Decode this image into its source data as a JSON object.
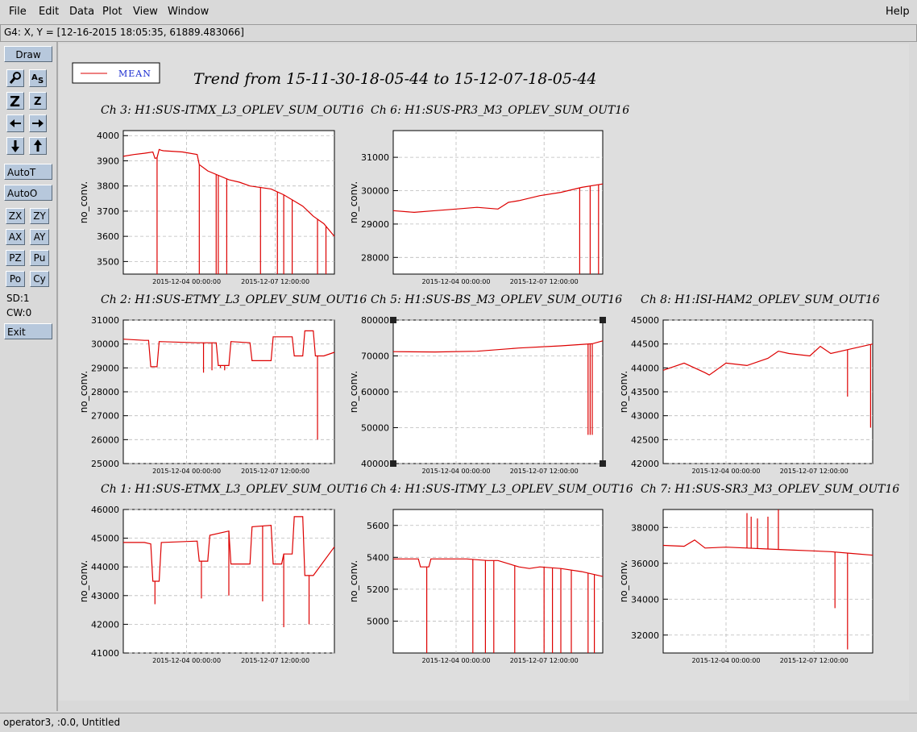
{
  "menu": {
    "file": "File",
    "edit": "Edit",
    "data": "Data",
    "plot": "Plot",
    "view": "View",
    "window": "Window",
    "help": "Help"
  },
  "coord_readout": "G4: X, Y = [12-16-2015 18:05:35, 61889.483066]",
  "toolbar": {
    "draw": "Draw",
    "autot": "AutoT",
    "autoo": "AutoO",
    "zx": "ZX",
    "zy": "ZY",
    "ax": "AX",
    "ay": "AY",
    "pz": "PZ",
    "pu": "Pu",
    "po": "Po",
    "cy": "Cy",
    "sd": "SD:1",
    "cw": "CW:0",
    "exit": "Exit",
    "icons": [
      "magnify-icon",
      "autoscale-icon",
      "zoom-out-icon",
      "zoom-in-icon",
      "arrow-left-icon",
      "arrow-right-icon",
      "arrow-down-icon",
      "arrow-up-icon"
    ]
  },
  "status": "operator3, :0.0, Untitled",
  "trace_color": "#dd0000",
  "chart_data": {
    "type": "line",
    "title": "Trend from 15-11-30-18-05-44 to 15-12-07-18-05-44",
    "legend": {
      "label": "MEAN",
      "placement": "top-left"
    },
    "grid": true,
    "xticks": [
      "2015-12-04 00:00:00",
      "2015-12-07 12:00:00"
    ],
    "panels": [
      {
        "title": "Ch 3: H1:SUS-ITMX_L3_OPLEV_SUM_OUT16",
        "ylabel": "no_conv.",
        "ylim": [
          3450,
          4020
        ],
        "yticks": [
          3500,
          3600,
          3700,
          3800,
          3900,
          4000
        ],
        "series": [
          {
            "name": "MEAN",
            "x": [
              0,
              0.05,
              0.1,
              0.14,
              0.15,
              0.16,
              0.17,
              0.18,
              0.19,
              0.28,
              0.35,
              0.36,
              0.4,
              0.5,
              0.55,
              0.6,
              0.7,
              0.76,
              0.8,
              0.85,
              0.9,
              0.95,
              1.0
            ],
            "y": [
              3918,
              3925,
              3930,
              3935,
              3910,
              3912,
              3945,
              3942,
              3940,
              3935,
              3925,
              3885,
              3860,
              3825,
              3815,
              3800,
              3788,
              3765,
              3745,
              3720,
              3680,
              3650,
              3600
            ]
          }
        ],
        "spikes": [
          [
            0.16,
            3450
          ],
          [
            0.36,
            3450
          ],
          [
            0.44,
            3450
          ],
          [
            0.45,
            3450
          ],
          [
            0.49,
            3450
          ],
          [
            0.65,
            3450
          ],
          [
            0.73,
            3450
          ],
          [
            0.76,
            3450
          ],
          [
            0.8,
            3450
          ],
          [
            0.92,
            3450
          ],
          [
            0.96,
            3450
          ]
        ]
      },
      {
        "title": "Ch 6: H1:SUS-PR3_M3_OPLEV_SUM_OUT16",
        "ylabel": "no_conv.",
        "ylim": [
          27500,
          31800
        ],
        "yticks": [
          28000,
          29000,
          30000,
          31000
        ],
        "series": [
          {
            "name": "MEAN",
            "x": [
              0,
              0.1,
              0.2,
              0.3,
              0.4,
              0.5,
              0.55,
              0.6,
              0.7,
              0.8,
              0.9,
              1.0
            ],
            "y": [
              29400,
              29350,
              29400,
              29450,
              29500,
              29450,
              29650,
              29700,
              29850,
              29950,
              30100,
              30200
            ]
          }
        ],
        "spikes": [
          [
            0.89,
            27500
          ],
          [
            0.94,
            27500
          ],
          [
            0.98,
            27500
          ]
        ]
      },
      {
        "title": "Ch 2: H1:SUS-ETMY_L3_OPLEV_SUM_OUT16",
        "ylabel": "no_conv.",
        "ylim": [
          25000,
          31000
        ],
        "yticks": [
          25000,
          26000,
          27000,
          28000,
          29000,
          30000,
          31000
        ],
        "series": [
          {
            "name": "MEAN",
            "x": [
              0,
              0.1,
              0.12,
              0.13,
              0.16,
              0.17,
              0.35,
              0.36,
              0.44,
              0.45,
              0.5,
              0.51,
              0.6,
              0.61,
              0.7,
              0.71,
              0.8,
              0.81,
              0.85,
              0.86,
              0.9,
              0.91,
              0.95,
              1.0
            ],
            "y": [
              30200,
              30150,
              30150,
              29050,
              29050,
              30100,
              30050,
              30050,
              30050,
              29100,
              29100,
              30100,
              30050,
              29300,
              29300,
              30300,
              30300,
              29500,
              29500,
              30550,
              30550,
              29500,
              29500,
              29650
            ]
          }
        ],
        "spikes": [
          [
            0.38,
            28800
          ],
          [
            0.42,
            28900
          ],
          [
            0.46,
            29000
          ],
          [
            0.48,
            28900
          ],
          [
            0.92,
            26000
          ]
        ]
      },
      {
        "title": "Ch 5: H1:SUS-BS_M3_OPLEV_SUM_OUT16",
        "ylabel": "no_conv.",
        "ylim": [
          40000,
          80000
        ],
        "yticks": [
          40000,
          50000,
          60000,
          70000,
          80000
        ],
        "series": [
          {
            "name": "MEAN",
            "x": [
              0,
              0.2,
              0.4,
              0.6,
              0.8,
              0.95,
              1.0
            ],
            "y": [
              71200,
              71100,
              71300,
              72200,
              72800,
              73400,
              74200
            ]
          }
        ],
        "spikes": [
          [
            0.93,
            48000
          ],
          [
            0.94,
            48000
          ],
          [
            0.95,
            48000
          ]
        ]
      },
      {
        "title": "Ch 8: H1:ISI-HAM2_OPLEV_SUM_OUT16",
        "ylabel": "no_conv.",
        "ylim": [
          42000,
          45000
        ],
        "yticks": [
          42000,
          42500,
          43000,
          43500,
          44000,
          44500,
          45000
        ],
        "series": [
          {
            "name": "MEAN",
            "x": [
              0,
              0.1,
              0.2,
              0.22,
              0.3,
              0.4,
              0.5,
              0.55,
              0.6,
              0.7,
              0.75,
              0.8,
              0.9,
              1.0
            ],
            "y": [
              43950,
              44100,
              43900,
              43850,
              44100,
              44050,
              44200,
              44350,
              44300,
              44250,
              44450,
              44300,
              44400,
              44500
            ]
          }
        ],
        "spikes": [
          [
            0.88,
            43400
          ],
          [
            0.99,
            42750
          ]
        ]
      },
      {
        "title": "Ch 1: H1:SUS-ETMX_L3_OPLEV_SUM_OUT16",
        "ylabel": "no_conv.",
        "ylim": [
          41000,
          46000
        ],
        "yticks": [
          41000,
          42000,
          43000,
          44000,
          45000,
          46000
        ],
        "series": [
          {
            "name": "MEAN",
            "x": [
              0,
              0.1,
              0.13,
              0.14,
              0.17,
              0.18,
              0.35,
              0.36,
              0.4,
              0.41,
              0.5,
              0.51,
              0.6,
              0.61,
              0.7,
              0.71,
              0.75,
              0.76,
              0.8,
              0.81,
              0.85,
              0.86,
              0.9,
              1.0
            ],
            "y": [
              44850,
              44850,
              44800,
              43500,
              43500,
              44850,
              44900,
              44200,
              44200,
              45100,
              45250,
              44100,
              44100,
              45400,
              45450,
              44100,
              44100,
              44450,
              44450,
              45750,
              45750,
              43700,
              43700,
              44700
            ]
          }
        ],
        "spikes": [
          [
            0.15,
            42700
          ],
          [
            0.37,
            42900
          ],
          [
            0.5,
            43000
          ],
          [
            0.66,
            42800
          ],
          [
            0.76,
            41900
          ],
          [
            0.88,
            42000
          ]
        ]
      },
      {
        "title": "Ch 4: H1:SUS-ITMY_L3_OPLEV_SUM_OUT16",
        "ylabel": "no_conv.",
        "ylim": [
          4800,
          5700
        ],
        "yticks": [
          5000,
          5200,
          5400,
          5600
        ],
        "series": [
          {
            "name": "MEAN",
            "x": [
              0,
              0.12,
              0.13,
              0.17,
              0.18,
              0.35,
              0.45,
              0.5,
              0.6,
              0.65,
              0.7,
              0.8,
              0.9,
              1.0
            ],
            "y": [
              5390,
              5390,
              5340,
              5340,
              5390,
              5390,
              5380,
              5380,
              5340,
              5330,
              5340,
              5330,
              5310,
              5280
            ]
          }
        ],
        "spikes": [
          [
            0.16,
            4800
          ],
          [
            0.38,
            4800
          ],
          [
            0.44,
            4800
          ],
          [
            0.48,
            4800
          ],
          [
            0.58,
            4800
          ],
          [
            0.72,
            4800
          ],
          [
            0.76,
            4800
          ],
          [
            0.8,
            4800
          ],
          [
            0.85,
            4800
          ],
          [
            0.93,
            4800
          ],
          [
            0.96,
            4800
          ]
        ]
      },
      {
        "title": "Ch 7: H1:SUS-SR3_M3_OPLEV_SUM_OUT16",
        "ylabel": "no_conv.",
        "ylim": [
          31000,
          39000
        ],
        "yticks": [
          32000,
          34000,
          36000,
          38000
        ],
        "series": [
          {
            "name": "MEAN",
            "x": [
              0,
              0.1,
              0.15,
              0.2,
              0.3,
              0.4,
              0.5,
              0.6,
              0.7,
              0.8,
              0.9,
              1.0
            ],
            "y": [
              37000,
              36950,
              37300,
              36850,
              36900,
              36850,
              36800,
              36750,
              36700,
              36650,
              36550,
              36450
            ]
          }
        ],
        "spikes": [
          [
            0.4,
            38800
          ],
          [
            0.42,
            38600
          ],
          [
            0.45,
            38500
          ],
          [
            0.5,
            38600
          ],
          [
            0.55,
            39000
          ],
          [
            0.82,
            33500
          ],
          [
            0.88,
            31200
          ]
        ]
      }
    ]
  }
}
